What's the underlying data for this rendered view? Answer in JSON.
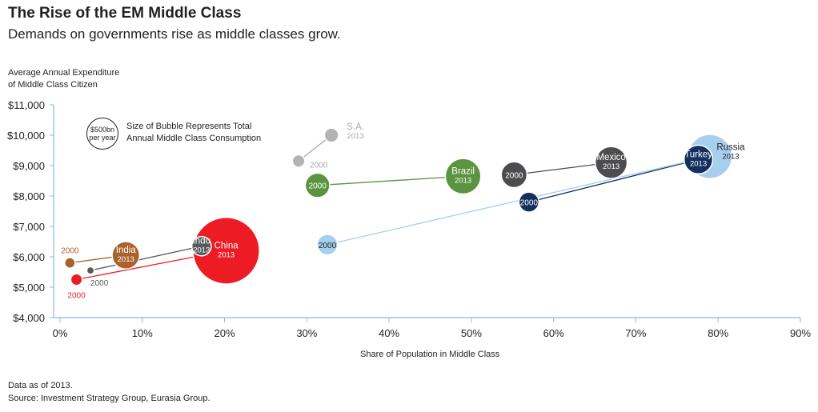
{
  "title": "The Rise of the EM Middle Class",
  "subtitle": "Demands on governments rise as middle classes grow.",
  "ylabel_line1": "Average Annual Expenditure",
  "ylabel_line2": "of Middle Class Citizen",
  "xlabel": "Share of Population in Middle Class",
  "note_line1": "Data as of 2013.",
  "note_line2": "Source: Investment Strategy Group, Eurasia Group.",
  "legend": {
    "bubble_line1": "$500bn",
    "bubble_line2": "per year",
    "text_line1": "Size of Bubble Represents Total",
    "text_line2": "Annual Middle Class Consumption"
  },
  "chart_data": {
    "type": "scatter",
    "title": "The Rise of the EM Middle Class",
    "xlabel": "Share of Population in Middle Class",
    "ylabel": "Average Annual Expenditure of Middle Class Citizen",
    "xlim": [
      0,
      90
    ],
    "ylim": [
      4000,
      11000
    ],
    "x_ticks": [
      "0%",
      "10%",
      "20%",
      "30%",
      "40%",
      "50%",
      "60%",
      "70%",
      "80%",
      "90%"
    ],
    "y_ticks": [
      "$4,000",
      "$5,000",
      "$6,000",
      "$7,000",
      "$8,000",
      "$9,000",
      "$10,000",
      "$11,000"
    ],
    "series": [
      {
        "name": "China",
        "color": "#ed1c24",
        "label_color": "#ffffff",
        "points": [
          {
            "year": "2000",
            "x": 2,
            "y": 5250,
            "size": 60
          },
          {
            "year": "2013",
            "x": 20.2,
            "y": 6200,
            "size": 2000
          }
        ]
      },
      {
        "name": "India",
        "color": "#a8622a",
        "label_color": "#ffffff",
        "points": [
          {
            "year": "2000",
            "x": 1.2,
            "y": 5800,
            "size": 50
          },
          {
            "year": "2013",
            "x": 8,
            "y": 6050,
            "size": 340
          }
        ]
      },
      {
        "name": "Indo",
        "color": "#58595b",
        "label_color": "#ffffff",
        "points": [
          {
            "year": "2000",
            "x": 3.7,
            "y": 5550,
            "size": 25
          },
          {
            "year": "2013",
            "x": 17.2,
            "y": 6350,
            "size": 170
          }
        ]
      },
      {
        "name": "Brazil",
        "color": "#5a9440",
        "label_color": "#ffffff",
        "points": [
          {
            "year": "2000",
            "x": 31.3,
            "y": 8350,
            "size": 270
          },
          {
            "year": "2013",
            "x": 49,
            "y": 8650,
            "size": 570
          }
        ]
      },
      {
        "name": "Mexico",
        "color": "#4d4d4f",
        "label_color": "#ffffff",
        "points": [
          {
            "year": "2000",
            "x": 55.2,
            "y": 8700,
            "size": 300
          },
          {
            "year": "2013",
            "x": 67,
            "y": 9100,
            "size": 460
          }
        ]
      },
      {
        "name": "Turkey",
        "color": "#14305e",
        "label_color": "#ffffff",
        "points": [
          {
            "year": "2000",
            "x": 57,
            "y": 7800,
            "size": 180
          },
          {
            "year": "2013",
            "x": 77.6,
            "y": 9200,
            "size": 370
          }
        ]
      },
      {
        "name": "Russia",
        "color": "#a6cfee",
        "label_color": "#231f20",
        "points": [
          {
            "year": "2000",
            "x": 32.5,
            "y": 6400,
            "size": 190
          },
          {
            "year": "2013",
            "x": 79,
            "y": 9300,
            "size": 880
          }
        ]
      },
      {
        "name": "S.A.",
        "color": "#b3b3b3",
        "label_color": "#a7a9ac",
        "points": [
          {
            "year": "2000",
            "x": 29,
            "y": 9150,
            "size": 70
          },
          {
            "year": "2013",
            "x": 33,
            "y": 10000,
            "size": 90
          }
        ]
      }
    ]
  }
}
